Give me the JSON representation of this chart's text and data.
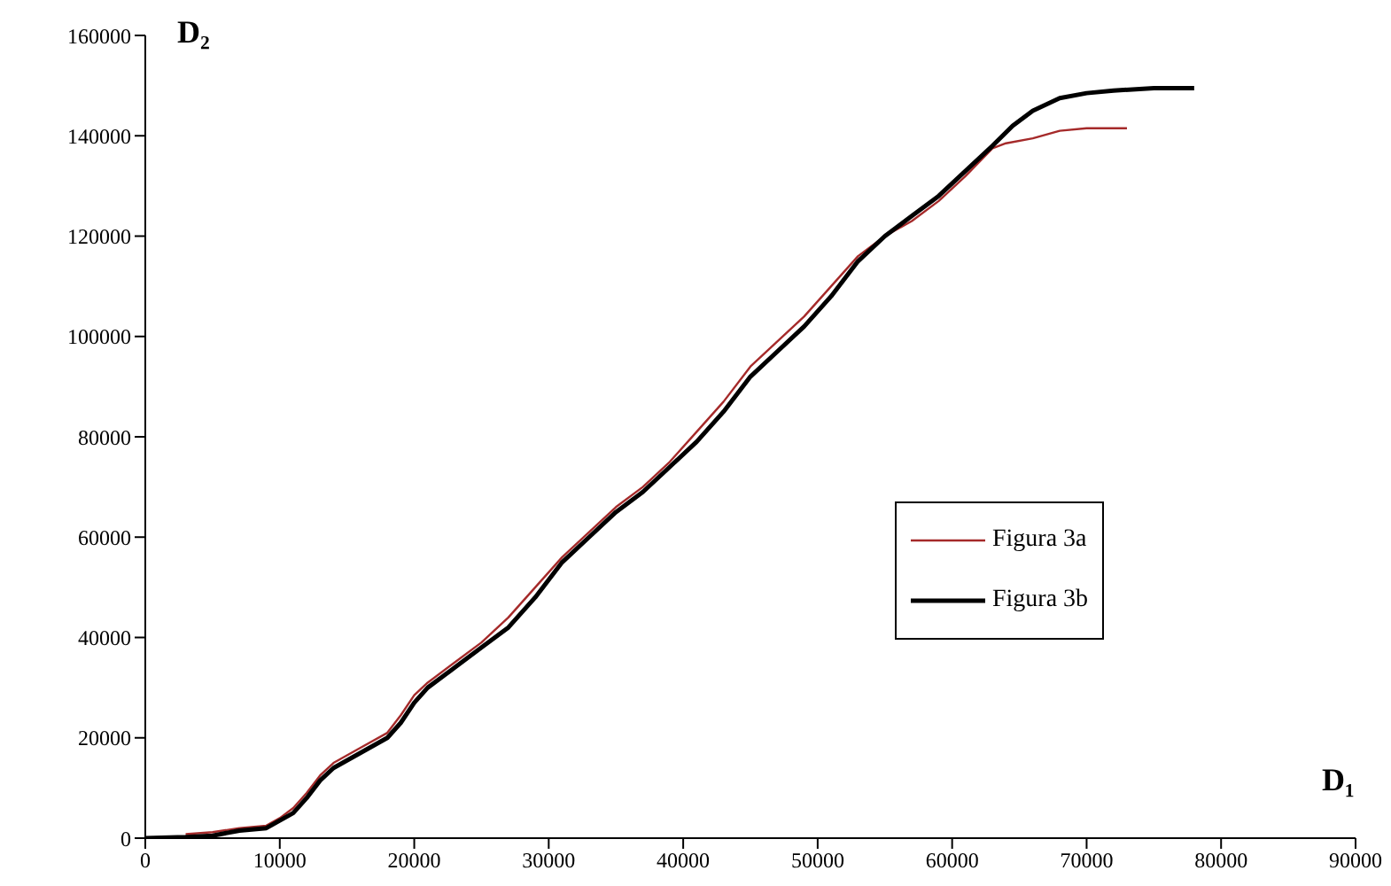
{
  "chart_data": {
    "type": "line",
    "xlabel": "D₁",
    "ylabel": "D₂",
    "xlim": [
      0,
      90000
    ],
    "xticks": [
      0,
      10000,
      20000,
      30000,
      40000,
      50000,
      60000,
      70000,
      80000,
      90000
    ],
    "ylim": [
      0,
      160000
    ],
    "yticks": [
      0,
      20000,
      40000,
      60000,
      80000,
      100000,
      120000,
      140000,
      160000
    ],
    "grid": false,
    "legend": "right",
    "marker": "none",
    "series": [
      {
        "name": "Figura 3a",
        "color": "#a52a2a",
        "x": [
          3000,
          5000,
          7000,
          9000,
          10000,
          11000,
          12000,
          13000,
          14000,
          16000,
          18000,
          19000,
          20000,
          21000,
          23000,
          25000,
          27000,
          29000,
          31000,
          33000,
          35000,
          37000,
          39000,
          41000,
          43000,
          45000,
          47000,
          49000,
          51000,
          53000,
          55000,
          57000,
          59000,
          61000,
          63000,
          64000,
          66000,
          68000,
          70000,
          73000
        ],
        "values": [
          800,
          1200,
          2000,
          2500,
          4000,
          6000,
          9000,
          12500,
          15000,
          18000,
          21000,
          24500,
          28500,
          31000,
          35000,
          39000,
          44000,
          50000,
          56000,
          61000,
          66000,
          70000,
          75000,
          81000,
          87000,
          94000,
          99000,
          104000,
          110000,
          116000,
          120000,
          123000,
          127000,
          132000,
          137500,
          138500,
          139500,
          141000,
          141500,
          141500
        ]
      },
      {
        "name": "Figura 3b",
        "color": "#000000",
        "x": [
          0,
          3000,
          5000,
          7000,
          9000,
          10000,
          11000,
          12000,
          13000,
          14000,
          16000,
          18000,
          19000,
          20000,
          21000,
          23000,
          25000,
          27000,
          29000,
          31000,
          33000,
          35000,
          37000,
          39000,
          41000,
          43000,
          45000,
          47000,
          49000,
          51000,
          53000,
          55000,
          57000,
          59000,
          61000,
          63000,
          64500,
          66000,
          68000,
          70000,
          72000,
          75000,
          78000
        ],
        "values": [
          0,
          200,
          500,
          1500,
          2000,
          3500,
          5000,
          8000,
          11500,
          14000,
          17000,
          20000,
          23000,
          27000,
          30000,
          34000,
          38000,
          42000,
          48000,
          55000,
          60000,
          65000,
          69000,
          74000,
          79000,
          85000,
          92000,
          97000,
          102000,
          108000,
          115000,
          120000,
          124000,
          128000,
          133000,
          138000,
          142000,
          145000,
          147500,
          148500,
          149000,
          149500,
          149500
        ]
      }
    ]
  }
}
